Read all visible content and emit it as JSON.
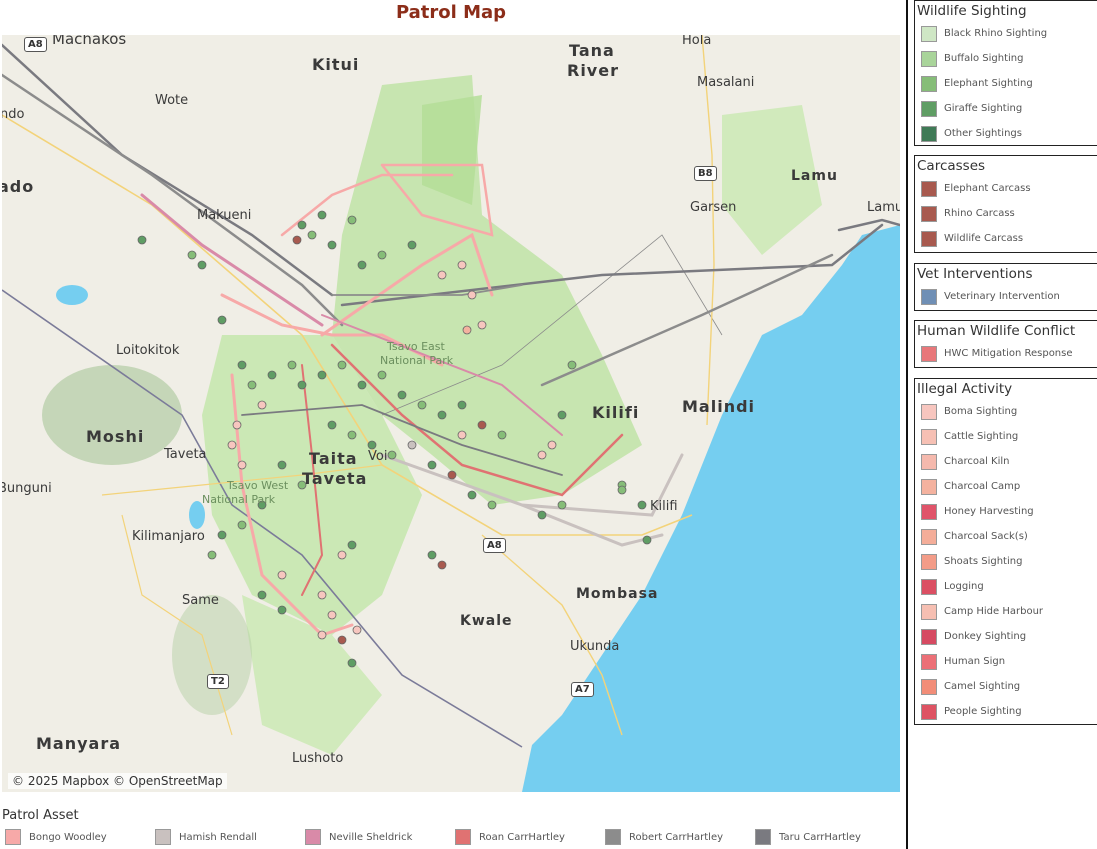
{
  "title": "Patrol Map",
  "attribution": "© 2025 Mapbox © OpenStreetMap",
  "map": {
    "places_big": [
      "Kitui",
      "Tana",
      "River",
      "Kilifi",
      "Malindi",
      "Moshi",
      "Taita",
      "Taveta",
      "Manyara"
    ],
    "places_mid": [
      "Lamu",
      "Mombasa",
      "Kwale"
    ],
    "places": [
      "Machakos",
      "Hola",
      "Masalani",
      "Wote",
      "Makueni",
      "Garsen",
      "Lamu",
      "Loitokitok",
      "Taveta",
      "Voi",
      "Kilimanjaro",
      "Same",
      "Ukunda",
      "Lushoto",
      "Kilifi",
      "ndo",
      "ado",
      "Bunguni"
    ],
    "park_labels": [
      "Tsavo East",
      "National Park",
      "Tsavo West",
      "National Park"
    ],
    "road_shields": [
      "A8",
      "B8",
      "A8",
      "T2",
      "A7"
    ]
  },
  "legends": [
    {
      "title": "Wildlife Sighting",
      "items": [
        {
          "label": "Black Rhino Sighting",
          "color": "#cfe7c5"
        },
        {
          "label": "Buffalo Sighting",
          "color": "#a9d49a"
        },
        {
          "label": "Elephant Sighting",
          "color": "#86bd78"
        },
        {
          "label": "Giraffe Sighting",
          "color": "#5f9d64"
        },
        {
          "label": "Other Sightings",
          "color": "#3f7a56"
        }
      ]
    },
    {
      "title": "Carcasses",
      "items": [
        {
          "label": "Elephant Carcass",
          "color": "#a85a4f"
        },
        {
          "label": "Rhino Carcass",
          "color": "#a85a4f"
        },
        {
          "label": "Wildlife Carcass",
          "color": "#a85a4f"
        }
      ]
    },
    {
      "title": "Vet Interventions",
      "items": [
        {
          "label": "Veterinary Intervention",
          "color": "#6f8fb5"
        }
      ]
    },
    {
      "title": "Human Wildlife Conflict",
      "items": [
        {
          "label": "HWC Mitigation Response",
          "color": "#e8777a"
        }
      ]
    },
    {
      "title": "Illegal Activity",
      "items": [
        {
          "label": "Boma Sighting",
          "color": "#f7c6bf"
        },
        {
          "label": "Cattle Sighting",
          "color": "#f6c0b4"
        },
        {
          "label": "Charcoal Kiln",
          "color": "#f5b9ad"
        },
        {
          "label": "Charcoal Camp",
          "color": "#f4b29f"
        },
        {
          "label": "Honey Harvesting",
          "color": "#e0546a"
        },
        {
          "label": "Charcoal Sack(s)",
          "color": "#f4ad99"
        },
        {
          "label": "Shoats Sighting",
          "color": "#f39c88"
        },
        {
          "label": "Logging",
          "color": "#db4f63"
        },
        {
          "label": "Camp Hide Harbour",
          "color": "#f6bfb2"
        },
        {
          "label": "Donkey Sighting",
          "color": "#d64a62"
        },
        {
          "label": "Human Sign",
          "color": "#ec7077"
        },
        {
          "label": "Camel Sighting",
          "color": "#f28d78"
        },
        {
          "label": "People Sighting",
          "color": "#de5363"
        }
      ]
    }
  ],
  "patrol_asset": {
    "title": "Patrol Asset",
    "items": [
      {
        "label": "Bongo Woodley",
        "color": "#f7a9a8"
      },
      {
        "label": "Hamish Rendall",
        "color": "#c9c1bf"
      },
      {
        "label": "Neville Sheldrick",
        "color": "#d98aa8"
      },
      {
        "label": "Roan CarrHartley",
        "color": "#e07272"
      },
      {
        "label": "Robert CarrHartley",
        "color": "#8c8c8c"
      },
      {
        "label": "Taru CarrHartley",
        "color": "#7a7a80"
      }
    ]
  }
}
